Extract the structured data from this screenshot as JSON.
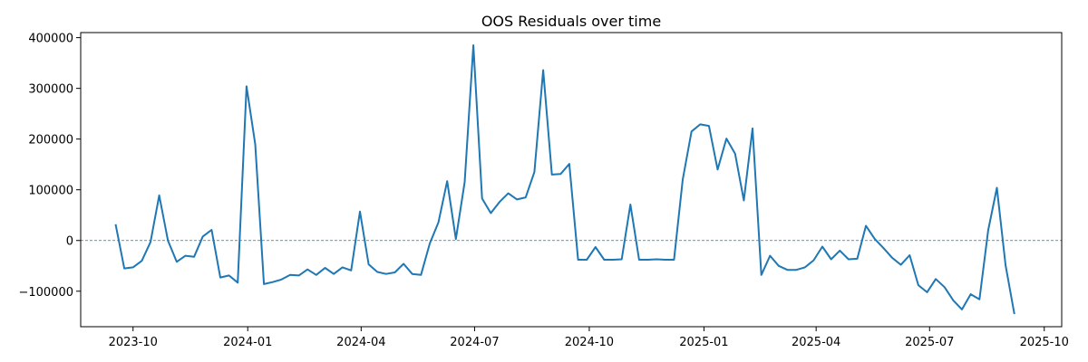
{
  "chart_data": {
    "type": "line",
    "title": "OOS Residuals over time",
    "xlabel": "",
    "ylabel": "",
    "xlim": [
      "2023-08-20",
      "2025-10-15"
    ],
    "ylim": [
      -170000,
      410000
    ],
    "x_ticks": [
      "2023-10-01",
      "2024-01-01",
      "2024-04-01",
      "2024-07-01",
      "2024-10-01",
      "2025-01-01",
      "2025-04-01",
      "2025-07-01",
      "2025-10-01"
    ],
    "x_tick_labels": [
      "2023-10",
      "2024-01",
      "2024-04",
      "2024-07",
      "2024-10",
      "2025-01",
      "2025-04",
      "2025-07",
      "2025-10"
    ],
    "y_ticks": [
      -100000,
      0,
      100000,
      200000,
      300000,
      400000
    ],
    "y_tick_labels": [
      "−100000",
      "0",
      "100000",
      "200000",
      "300000",
      "400000"
    ],
    "reference_line": {
      "y": 0,
      "style": "dashed",
      "color": "#1f77b4"
    },
    "grid": false,
    "series": [
      {
        "color": "#1f77b4",
        "x": [
          "2023-09-17",
          "2023-09-24",
          "2023-10-01",
          "2023-10-08",
          "2023-10-15",
          "2023-10-22",
          "2023-10-29",
          "2023-11-05",
          "2023-11-12",
          "2023-11-19",
          "2023-11-26",
          "2023-12-03",
          "2023-12-10",
          "2023-12-17",
          "2023-12-24",
          "2023-12-31",
          "2024-01-07",
          "2024-01-14",
          "2024-01-21",
          "2024-01-28",
          "2024-02-04",
          "2024-02-11",
          "2024-02-18",
          "2024-02-25",
          "2024-03-03",
          "2024-03-10",
          "2024-03-17",
          "2024-03-24",
          "2024-03-31",
          "2024-04-07",
          "2024-04-14",
          "2024-04-21",
          "2024-04-28",
          "2024-05-05",
          "2024-05-12",
          "2024-05-19",
          "2024-05-26",
          "2024-06-02",
          "2024-06-09",
          "2024-06-16",
          "2024-06-23",
          "2024-06-30",
          "2024-07-07",
          "2024-07-14",
          "2024-07-21",
          "2024-07-28",
          "2024-08-04",
          "2024-08-11",
          "2024-08-18",
          "2024-08-25",
          "2024-09-01",
          "2024-09-08",
          "2024-09-15",
          "2024-09-22",
          "2024-09-29",
          "2024-10-06",
          "2024-10-13",
          "2024-10-20",
          "2024-10-27",
          "2024-11-03",
          "2024-11-10",
          "2024-11-17",
          "2024-11-24",
          "2024-12-01",
          "2024-12-08",
          "2024-12-15",
          "2024-12-22",
          "2024-12-29",
          "2025-01-05",
          "2025-01-12",
          "2025-01-19",
          "2025-01-26",
          "2025-02-02",
          "2025-02-09",
          "2025-02-16",
          "2025-02-23",
          "2025-03-02",
          "2025-03-09",
          "2025-03-16",
          "2025-03-23",
          "2025-03-30",
          "2025-04-06",
          "2025-04-13",
          "2025-04-20",
          "2025-04-27",
          "2025-05-04",
          "2025-05-11",
          "2025-05-18",
          "2025-05-25",
          "2025-06-01",
          "2025-06-08",
          "2025-06-15",
          "2025-06-22",
          "2025-06-29",
          "2025-07-06",
          "2025-07-13",
          "2025-07-20",
          "2025-07-27",
          "2025-08-03",
          "2025-08-10",
          "2025-08-17",
          "2025-08-24",
          "2025-08-31",
          "2025-09-07"
        ],
        "y": [
          32000,
          -55000,
          -53000,
          -40000,
          -3000,
          89000,
          0,
          -42000,
          -30000,
          -32000,
          8000,
          21000,
          -73000,
          -69000,
          -83000,
          304000,
          190000,
          -86000,
          -82000,
          -77000,
          -68000,
          -69000,
          -57000,
          -68000,
          -54000,
          -66000,
          -53000,
          -59000,
          57000,
          -47000,
          -62000,
          -66000,
          -63000,
          -46000,
          -66000,
          -68000,
          -6000,
          36000,
          117000,
          3000,
          115000,
          385000,
          83000,
          54000,
          76000,
          93000,
          81000,
          85000,
          135000,
          336000,
          130000,
          131000,
          151000,
          -38000,
          -38000,
          -13000,
          -38000,
          -38000,
          -37000,
          71000,
          -38000,
          -38000,
          -37000,
          -38000,
          -38000,
          120000,
          215000,
          229000,
          226000,
          140000,
          201000,
          171000,
          79000,
          221000,
          -68000,
          -30000,
          -50000,
          -58000,
          -58000,
          -53000,
          -39000,
          -12000,
          -37000,
          -20000,
          -37000,
          -36000,
          29000,
          3000,
          -15000,
          -34000,
          -48000,
          -29000,
          -88000,
          -102000,
          -76000,
          -92000,
          -118000,
          -136000,
          -106000,
          -116000,
          20000,
          104000,
          -49000,
          -145000
        ]
      }
    ]
  }
}
